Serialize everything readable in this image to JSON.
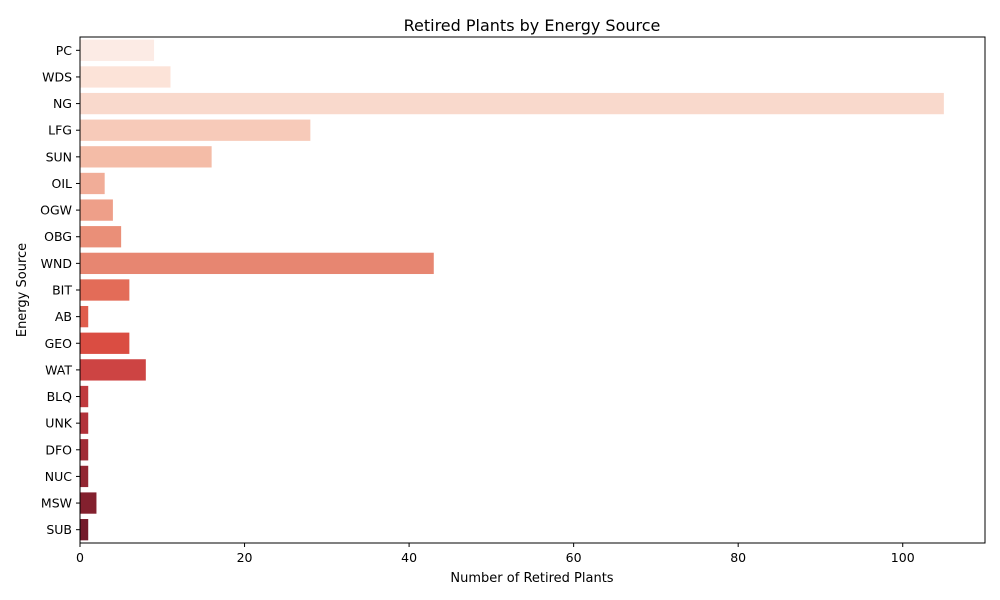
{
  "chart_data": {
    "type": "bar",
    "orientation": "horizontal",
    "title": "Retired Plants by Energy Source",
    "xlabel": "Number of Retired Plants",
    "ylabel": "Energy Source",
    "xlim": [
      0,
      110
    ],
    "xticks": [
      0,
      20,
      40,
      60,
      80,
      100
    ],
    "grid": false,
    "legend": "none",
    "categories": [
      "PC",
      "WDS",
      "NG",
      "LFG",
      "SUN",
      "OIL",
      "OGW",
      "OBG",
      "WND",
      "BIT",
      "AB",
      "GEO",
      "WAT",
      "BLQ",
      "UNK",
      "DFO",
      "NUC",
      "MSW",
      "SUB"
    ],
    "values": [
      9,
      11,
      105,
      28,
      16,
      3,
      4,
      5,
      43,
      6,
      1,
      6,
      8,
      1,
      1,
      1,
      1,
      2,
      1
    ],
    "colors": [
      "#fcebe5",
      "#fce3d8",
      "#f9d9cc",
      "#f7cab9",
      "#f4bca7",
      "#f1ad98",
      "#ee9f89",
      "#ea8f78",
      "#e78671",
      "#e36c58",
      "#e05d4c",
      "#da4d42",
      "#cd4443",
      "#c03a3e",
      "#b2323a",
      "#a12b36",
      "#922632",
      "#83202e",
      "#74192a"
    ]
  }
}
